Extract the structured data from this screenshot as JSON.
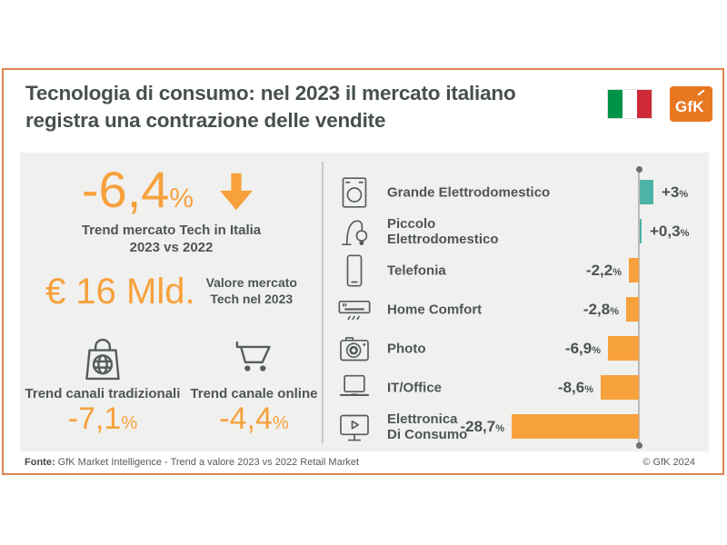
{
  "header": {
    "title": "Tecnologia di consumo: nel 2023 il mercato italiano\nregistra una contrazione delle vendite",
    "logo_text": "GfK"
  },
  "left_panel": {
    "main_trend": {
      "value": "-6,4",
      "unit": "%",
      "caption": "Trend mercato Tech in Italia\n2023 vs 2022"
    },
    "market_value": {
      "value": "€ 16 Mld.",
      "caption": "Valore mercato\nTech nel 2023"
    },
    "channels": [
      {
        "icon": "shopping-bag-globe",
        "label": "Trend canali tradizionali",
        "value": "-7,1",
        "unit": "%"
      },
      {
        "icon": "shopping-cart",
        "label": "Trend canale online",
        "value": "-4,4",
        "unit": "%"
      }
    ]
  },
  "chart_data": {
    "type": "bar",
    "orientation": "horizontal",
    "categories": [
      "Grande Elettrodomestico",
      "Piccolo\nElettrodomestico",
      "Telefonia",
      "Home Comfort",
      "Photo",
      "IT/Office",
      "Elettronica\nDi Consumo"
    ],
    "values": [
      3,
      0.3,
      -2.2,
      -2.8,
      -6.9,
      -8.6,
      -28.7
    ],
    "value_labels": [
      "+3%",
      "+0,3%",
      "-2,2%",
      "-2,8%",
      "-6,9%",
      "-8,6%",
      "-28,7%"
    ],
    "icons": [
      "washing-machine",
      "vacuum-cleaner",
      "smartphone",
      "air-conditioner",
      "camera",
      "laptop",
      "tv-play"
    ],
    "unit": "%",
    "positive_color": "#4FB2A7",
    "negative_color": "#F7A13C",
    "axis_note": "zero baseline at right; negative bars extend left, positive bars extend right"
  },
  "footer": {
    "source_label": "Fonte:",
    "source_text": " GfK Market Intelligence  - Trend a valore 2023 vs 2022 Retail Market",
    "copyright": "© GfK 2024"
  },
  "colors": {
    "accent_orange": "#F7A13C",
    "teal": "#4FB2A7",
    "card_border": "#E0854F",
    "title_text": "#47504F",
    "panel_bg": "#F0F0EF"
  }
}
